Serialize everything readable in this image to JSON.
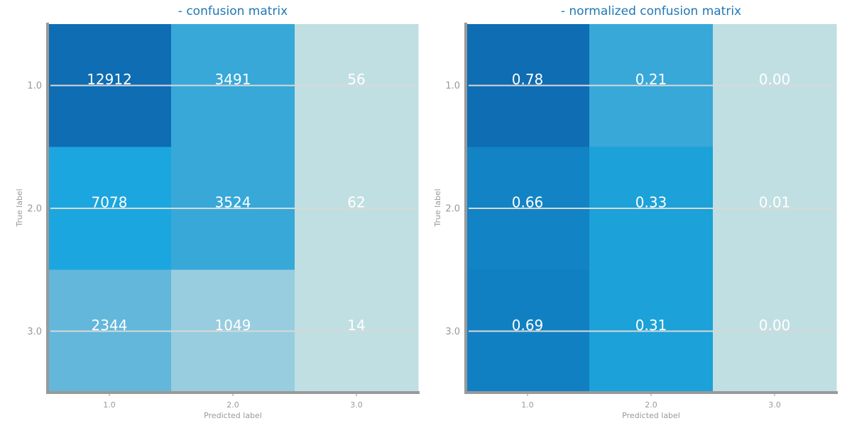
{
  "chart_data": [
    {
      "type": "heatmap",
      "title": "- confusion matrix",
      "xlabel": "Predicted label",
      "ylabel": "True label",
      "x_ticks": [
        "1.0",
        "2.0",
        "3.0"
      ],
      "y_ticks": [
        "1.0",
        "2.0",
        "3.0"
      ],
      "values": [
        [
          12912,
          3491,
          56
        ],
        [
          7078,
          3524,
          62
        ],
        [
          2344,
          1049,
          14
        ]
      ],
      "cell_labels": [
        [
          "12912",
          "3491",
          "56"
        ],
        [
          "7078",
          "3524",
          "62"
        ],
        [
          "2344",
          "1049",
          "14"
        ]
      ],
      "cell_colors": [
        [
          "#0e6db3",
          "#37a8d8",
          "#c0dfe2"
        ],
        [
          "#1ca6df",
          "#37a8d8",
          "#c0dfe2"
        ],
        [
          "#62b7db",
          "#97cddf",
          "#c0dfe2"
        ]
      ],
      "grid": true
    },
    {
      "type": "heatmap",
      "title": "- normalized confusion matrix",
      "xlabel": "Predicted label",
      "ylabel": "True label",
      "x_ticks": [
        "1.0",
        "2.0",
        "3.0"
      ],
      "y_ticks": [
        "1.0",
        "2.0",
        "3.0"
      ],
      "values": [
        [
          0.78,
          0.21,
          0.0
        ],
        [
          0.66,
          0.33,
          0.01
        ],
        [
          0.69,
          0.31,
          0.0
        ]
      ],
      "cell_labels": [
        [
          "0.78",
          "0.21",
          "0.00"
        ],
        [
          "0.66",
          "0.33",
          "0.01"
        ],
        [
          "0.69",
          "0.31",
          "0.00"
        ]
      ],
      "cell_colors": [
        [
          "#0e6db3",
          "#37a8d8",
          "#c0dfe2"
        ],
        [
          "#1283c5",
          "#1ca1d8",
          "#c0dfe2"
        ],
        [
          "#1180c3",
          "#1ca1d8",
          "#c0dfe2"
        ]
      ],
      "grid": true
    }
  ],
  "colors": {
    "title": "#1f77b4",
    "axis": "#999999",
    "tick_text": "#999999",
    "grid": "#d8d8d8",
    "cell_text": "#ffffff"
  }
}
